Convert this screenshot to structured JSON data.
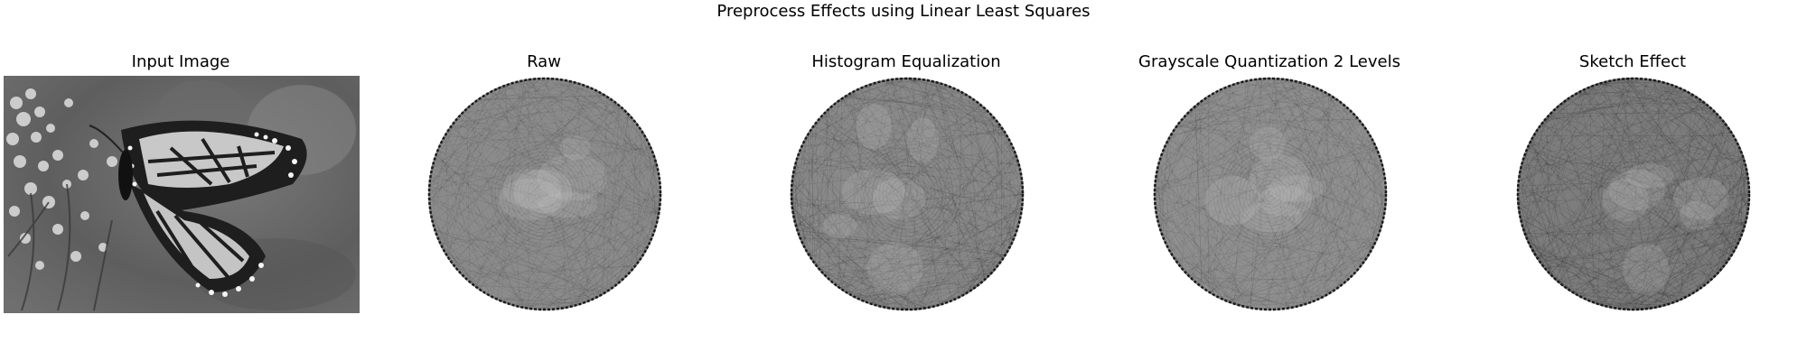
{
  "figure": {
    "title": "Preprocess Effects using Linear Least Squares"
  },
  "panels": [
    {
      "title": "Input Image",
      "kind": "photo"
    },
    {
      "title": "Raw",
      "kind": "string-art"
    },
    {
      "title": "Histogram Equalization",
      "kind": "string-art"
    },
    {
      "title": "Grayscale Quantization 2 Levels",
      "kind": "string-art"
    },
    {
      "title": "Sketch Effect",
      "kind": "string-art"
    }
  ]
}
